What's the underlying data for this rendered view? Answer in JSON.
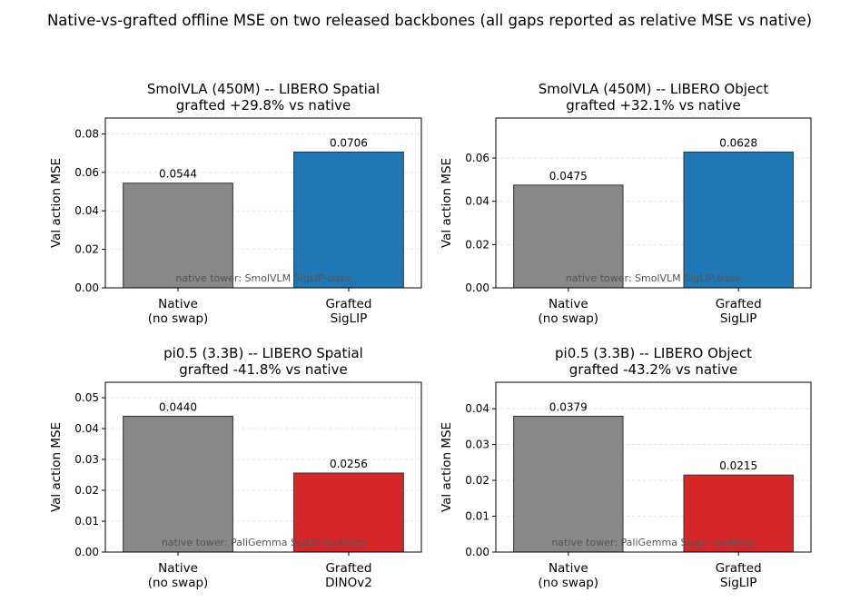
{
  "title": "Native-vs-grafted offline MSE on two released backbones (all gaps reported as relative MSE vs native)",
  "chart_data": [
    {
      "type": "bar",
      "title": "SmolVLA (450M) -- LIBERO Spatial",
      "subtitle": "grafted +29.8% vs native",
      "categories": [
        "Native\n(no swap)",
        "Grafted\nSigLIP"
      ],
      "values": [
        0.0544,
        0.0706
      ],
      "value_labels": [
        "0.0544",
        "0.0706"
      ],
      "colors": [
        "#888888",
        "#1f77b4"
      ],
      "ylabel": "Val action MSE",
      "annotation": "native tower: SmolVLM SigLIP-base",
      "ylim": [
        0,
        0.08825
      ],
      "yticks": [
        {
          "value": 0,
          "label": "0.00"
        },
        {
          "value": 0.02,
          "label": "0.02"
        },
        {
          "value": 0.04,
          "label": "0.04"
        },
        {
          "value": 0.06,
          "label": "0.06"
        },
        {
          "value": 0.08,
          "label": "0.08"
        }
      ],
      "grid": true
    },
    {
      "type": "bar",
      "title": "SmolVLA (450M) -- LIBERO Object",
      "subtitle": "grafted +32.1% vs native",
      "categories": [
        "Native\n(no swap)",
        "Grafted\nSigLIP"
      ],
      "values": [
        0.0475,
        0.0628
      ],
      "value_labels": [
        "0.0475",
        "0.0628"
      ],
      "colors": [
        "#888888",
        "#1f77b4"
      ],
      "ylabel": "Val action MSE",
      "annotation": "native tower: SmolVLM SigLIP-base",
      "ylim": [
        0,
        0.0785
      ],
      "yticks": [
        {
          "value": 0,
          "label": "0.00"
        },
        {
          "value": 0.02,
          "label": "0.02"
        },
        {
          "value": 0.04,
          "label": "0.04"
        },
        {
          "value": 0.06,
          "label": "0.06"
        }
      ],
      "grid": true
    },
    {
      "type": "bar",
      "title": "pi0.5 (3.3B) -- LIBERO Spatial",
      "subtitle": "grafted -41.8% vs native",
      "categories": [
        "Native\n(no swap)",
        "Grafted\nDINOv2"
      ],
      "values": [
        0.044,
        0.0256
      ],
      "value_labels": [
        "0.0440",
        "0.0256"
      ],
      "colors": [
        "#888888",
        "#d62728"
      ],
      "ylabel": "Val action MSE",
      "annotation": "native tower: PaliGemma SigLIP-So400m",
      "ylim": [
        0,
        0.055
      ],
      "yticks": [
        {
          "value": 0,
          "label": "0.00"
        },
        {
          "value": 0.01,
          "label": "0.01"
        },
        {
          "value": 0.02,
          "label": "0.02"
        },
        {
          "value": 0.03,
          "label": "0.03"
        },
        {
          "value": 0.04,
          "label": "0.04"
        },
        {
          "value": 0.05,
          "label": "0.05"
        }
      ],
      "grid": true
    },
    {
      "type": "bar",
      "title": "pi0.5 (3.3B) -- LIBERO Object",
      "subtitle": "grafted -43.2% vs native",
      "categories": [
        "Native\n(no swap)",
        "Grafted\nSigLIP"
      ],
      "values": [
        0.0379,
        0.0215
      ],
      "value_labels": [
        "0.0379",
        "0.0215"
      ],
      "colors": [
        "#888888",
        "#d62728"
      ],
      "ylabel": "Val action MSE",
      "annotation": "native tower: PaliGemma SigLIP-So400m",
      "ylim": [
        0,
        0.047375
      ],
      "yticks": [
        {
          "value": 0,
          "label": "0.00"
        },
        {
          "value": 0.01,
          "label": "0.01"
        },
        {
          "value": 0.02,
          "label": "0.02"
        },
        {
          "value": 0.03,
          "label": "0.03"
        },
        {
          "value": 0.04,
          "label": "0.04"
        }
      ],
      "grid": true
    }
  ]
}
